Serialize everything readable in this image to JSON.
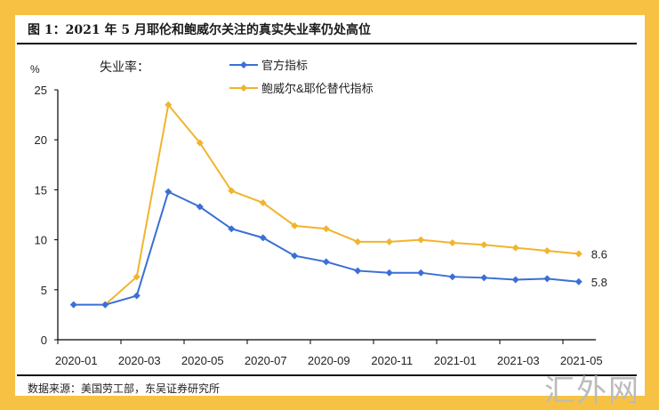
{
  "title": "图 1：2021 年 5 月耶伦和鲍威尔关注的真实失业率仍处高位",
  "source": "数据来源：美国劳工部，东吴证券研究所",
  "watermark": "汇外网",
  "chart_data": {
    "type": "line",
    "ylabel": "%",
    "legend_title": "失业率：",
    "legend_placement": "top-left",
    "ylim": [
      0,
      25
    ],
    "yticks": [
      0,
      5,
      10,
      15,
      20,
      25
    ],
    "x": [
      "2020-01",
      "2020-02",
      "2020-03",
      "2020-04",
      "2020-05",
      "2020-06",
      "2020-07",
      "2020-08",
      "2020-09",
      "2020-10",
      "2020-11",
      "2020-12",
      "2021-01",
      "2021-02",
      "2021-03",
      "2021-04",
      "2021-05"
    ],
    "xtick_labels": [
      "2020-01",
      "2020-03",
      "2020-05",
      "2020-07",
      "2020-09",
      "2020-11",
      "2021-01",
      "2021-03",
      "2021-05"
    ],
    "series": [
      {
        "name": "官方指标",
        "color": "#3b6fd6",
        "values": [
          3.5,
          3.5,
          4.4,
          14.8,
          13.3,
          11.1,
          10.2,
          8.4,
          7.8,
          6.9,
          6.7,
          6.7,
          6.3,
          6.2,
          6.0,
          6.1,
          5.8
        ],
        "end_label": "5.8"
      },
      {
        "name": "鲍威尔&耶伦替代指标",
        "color": "#f0b52e",
        "values": [
          null,
          3.5,
          6.3,
          23.5,
          19.7,
          14.9,
          13.7,
          11.4,
          11.1,
          9.8,
          9.8,
          10.0,
          9.7,
          9.5,
          9.2,
          8.9,
          8.6
        ],
        "end_label": "8.6"
      }
    ]
  }
}
